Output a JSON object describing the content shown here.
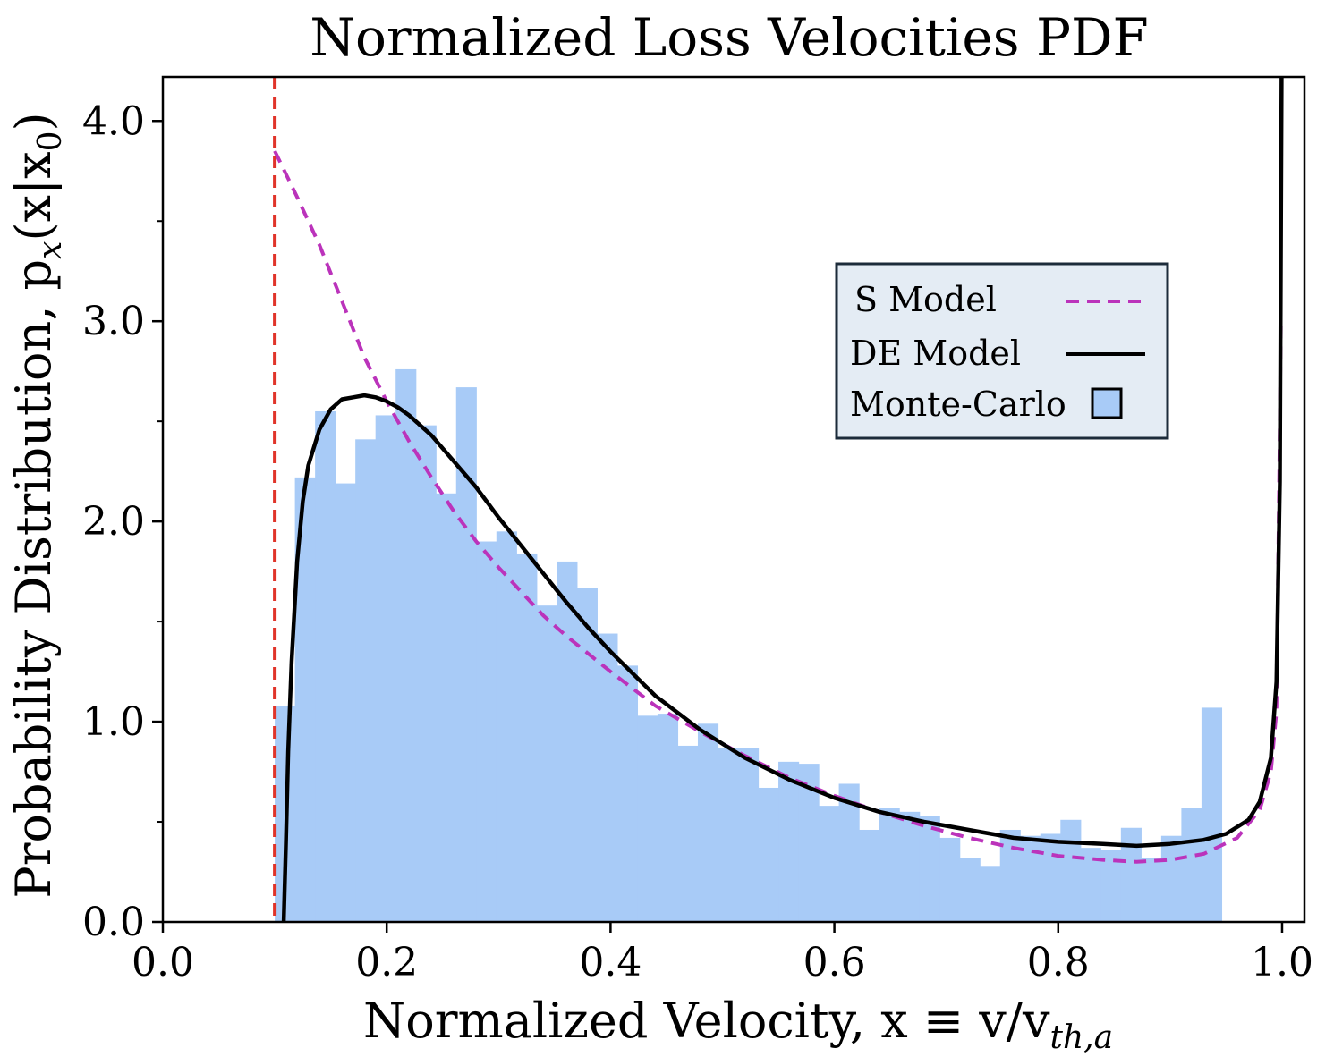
{
  "chart_data": {
    "type": "histogram_with_lines",
    "title": "Normalized Loss Velocities PDF",
    "xlabel": "Normalized Velocity, x ≡ v/v",
    "xlabel_sub": "th,a",
    "ylabel": "Probability Distribution, p",
    "ylabel_sub": "x",
    "ylabel_tail": "(x|x",
    "ylabel_tail_sub": "0",
    "ylabel_close": ")",
    "xlim": [
      0.0,
      1.02
    ],
    "ylim": [
      0.0,
      4.22
    ],
    "x_ticks": [
      0.0,
      0.2,
      0.4,
      0.6,
      0.8,
      1.0
    ],
    "x_tick_labels": [
      "0.0",
      "0.2",
      "0.4",
      "0.6",
      "0.8",
      "1.0"
    ],
    "y_ticks": [
      0.0,
      1.0,
      2.0,
      3.0,
      4.0
    ],
    "y_tick_labels": [
      "0.0",
      "1.0",
      "2.0",
      "3.0",
      "4.0"
    ],
    "y_minor_ticks": [
      0.5,
      1.5,
      2.5,
      3.5
    ],
    "grid": false,
    "legend_position": "upper-right",
    "legend": [
      {
        "label": "S Model",
        "style": "dashed-line",
        "color": "#bb33bb"
      },
      {
        "label": "DE Model",
        "style": "solid-line",
        "color": "#000000"
      },
      {
        "label": "Monte-Carlo",
        "style": "patch",
        "color": "#a8cbf7"
      }
    ],
    "vline": {
      "x": 0.1,
      "color": "#e0342a",
      "style": "dashed"
    },
    "histogram": {
      "color": "#a8cbf7",
      "bin_start": 0.1,
      "bin_width": 0.018,
      "heights": [
        1.08,
        2.22,
        2.55,
        2.19,
        2.41,
        2.53,
        2.76,
        2.48,
        2.14,
        2.67,
        1.9,
        1.95,
        1.84,
        1.58,
        1.8,
        1.67,
        1.44,
        1.28,
        1.03,
        1.04,
        0.88,
        0.99,
        0.87,
        0.87,
        0.67,
        0.8,
        0.79,
        0.58,
        0.69,
        0.46,
        0.57,
        0.55,
        0.53,
        0.42,
        0.32,
        0.28,
        0.46,
        0.43,
        0.44,
        0.51,
        0.37,
        0.36,
        0.47,
        0.32,
        0.43,
        0.57,
        1.07
      ]
    },
    "series": [
      {
        "name": "S Model",
        "color": "#bb33bb",
        "style": "dashed",
        "x": [
          0.1,
          0.12,
          0.14,
          0.16,
          0.18,
          0.2,
          0.22,
          0.24,
          0.26,
          0.28,
          0.3,
          0.32,
          0.34,
          0.36,
          0.38,
          0.4,
          0.44,
          0.48,
          0.52,
          0.56,
          0.6,
          0.64,
          0.68,
          0.72,
          0.76,
          0.8,
          0.84,
          0.87,
          0.9,
          0.93,
          0.96,
          0.98,
          0.99,
          0.995,
          0.999
        ],
        "y": [
          3.85,
          3.62,
          3.38,
          3.1,
          2.82,
          2.6,
          2.4,
          2.22,
          2.05,
          1.9,
          1.77,
          1.65,
          1.53,
          1.43,
          1.34,
          1.25,
          1.08,
          0.95,
          0.83,
          0.72,
          0.63,
          0.55,
          0.48,
          0.42,
          0.37,
          0.33,
          0.31,
          0.3,
          0.31,
          0.34,
          0.42,
          0.56,
          0.75,
          1.05,
          3.0
        ]
      },
      {
        "name": "DE Model",
        "color": "#000000",
        "style": "solid",
        "x": [
          0.108,
          0.11,
          0.112,
          0.115,
          0.12,
          0.125,
          0.13,
          0.14,
          0.15,
          0.16,
          0.17,
          0.18,
          0.19,
          0.2,
          0.21,
          0.22,
          0.24,
          0.26,
          0.28,
          0.3,
          0.32,
          0.34,
          0.36,
          0.38,
          0.4,
          0.44,
          0.48,
          0.52,
          0.56,
          0.6,
          0.64,
          0.68,
          0.72,
          0.76,
          0.8,
          0.84,
          0.87,
          0.9,
          0.93,
          0.95,
          0.97,
          0.98,
          0.99,
          0.995,
          0.998,
          0.9995
        ],
        "y": [
          0.0,
          0.4,
          0.85,
          1.3,
          1.8,
          2.1,
          2.28,
          2.46,
          2.56,
          2.61,
          2.62,
          2.63,
          2.62,
          2.6,
          2.57,
          2.53,
          2.43,
          2.3,
          2.17,
          2.02,
          1.88,
          1.74,
          1.6,
          1.47,
          1.35,
          1.13,
          0.96,
          0.82,
          0.71,
          0.62,
          0.55,
          0.5,
          0.46,
          0.42,
          0.4,
          0.39,
          0.38,
          0.39,
          0.41,
          0.44,
          0.51,
          0.6,
          0.82,
          1.2,
          2.2,
          4.22
        ]
      }
    ]
  }
}
